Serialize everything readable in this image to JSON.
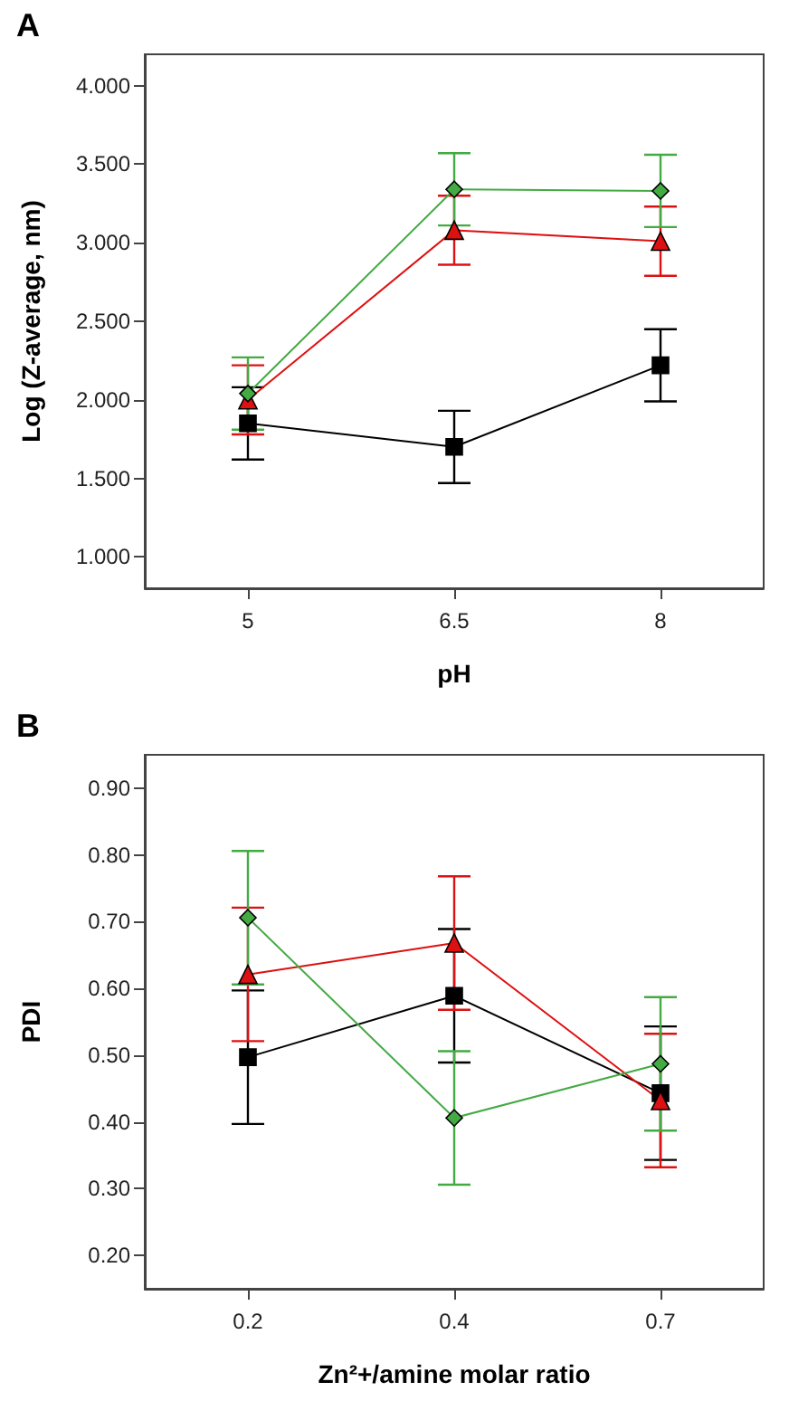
{
  "chart_data": [
    {
      "type": "line",
      "title": "A",
      "xlabel": "pH",
      "ylabel": "Log (Z-average, nm)",
      "categories": [
        "5",
        "6.5",
        "8"
      ],
      "ylim": [
        0.8,
        4.2
      ],
      "yticks": [
        {
          "value": 1,
          "label": "1.000"
        },
        {
          "value": 1.5,
          "label": "1.500"
        },
        {
          "value": 2,
          "label": "2.000"
        },
        {
          "value": 2.5,
          "label": "2.500"
        },
        {
          "value": 3,
          "label": "3.000"
        },
        {
          "value": 3.5,
          "label": "3.500"
        },
        {
          "value": 4,
          "label": "4.000"
        }
      ],
      "grid": false,
      "line_style": "solid",
      "series": [
        {
          "color": "#000000",
          "marker": "square",
          "values": [
            1.85,
            1.7,
            2.22
          ],
          "errors": [
            0.23,
            0.23,
            0.23
          ]
        },
        {
          "color": "#dd1111",
          "marker": "triangle",
          "values": [
            2.0,
            3.08,
            3.01
          ],
          "errors": [
            0.22,
            0.22,
            0.22
          ]
        },
        {
          "color": "#44aa44",
          "marker": "diamond",
          "values": [
            2.04,
            3.34,
            3.33
          ],
          "errors": [
            0.23,
            0.23,
            0.23
          ]
        }
      ]
    },
    {
      "type": "line",
      "title": "B",
      "xlabel": "Zn²+/amine molar ratio",
      "ylabel": "PDI",
      "categories": [
        "0.2",
        "0.4",
        "0.7"
      ],
      "ylim": [
        0.15,
        0.95
      ],
      "yticks": [
        {
          "value": 0.2,
          "label": "0.20"
        },
        {
          "value": 0.3,
          "label": "0.30"
        },
        {
          "value": 0.4,
          "label": "0.40"
        },
        {
          "value": 0.5,
          "label": "0.50"
        },
        {
          "value": 0.6,
          "label": "0.60"
        },
        {
          "value": 0.7,
          "label": "0.70"
        },
        {
          "value": 0.8,
          "label": "0.80"
        },
        {
          "value": 0.9,
          "label": "0.90"
        }
      ],
      "grid": false,
      "line_style": "solid",
      "series": [
        {
          "color": "#000000",
          "marker": "square",
          "values": [
            0.497,
            0.589,
            0.443
          ],
          "errors": [
            0.1,
            0.1,
            0.1
          ]
        },
        {
          "color": "#dd1111",
          "marker": "triangle",
          "values": [
            0.621,
            0.668,
            0.432
          ],
          "errors": [
            0.1,
            0.1,
            0.1
          ]
        },
        {
          "color": "#44aa44",
          "marker": "diamond",
          "values": [
            0.706,
            0.406,
            0.487
          ],
          "errors": [
            0.1,
            0.1,
            0.1
          ]
        }
      ]
    }
  ]
}
